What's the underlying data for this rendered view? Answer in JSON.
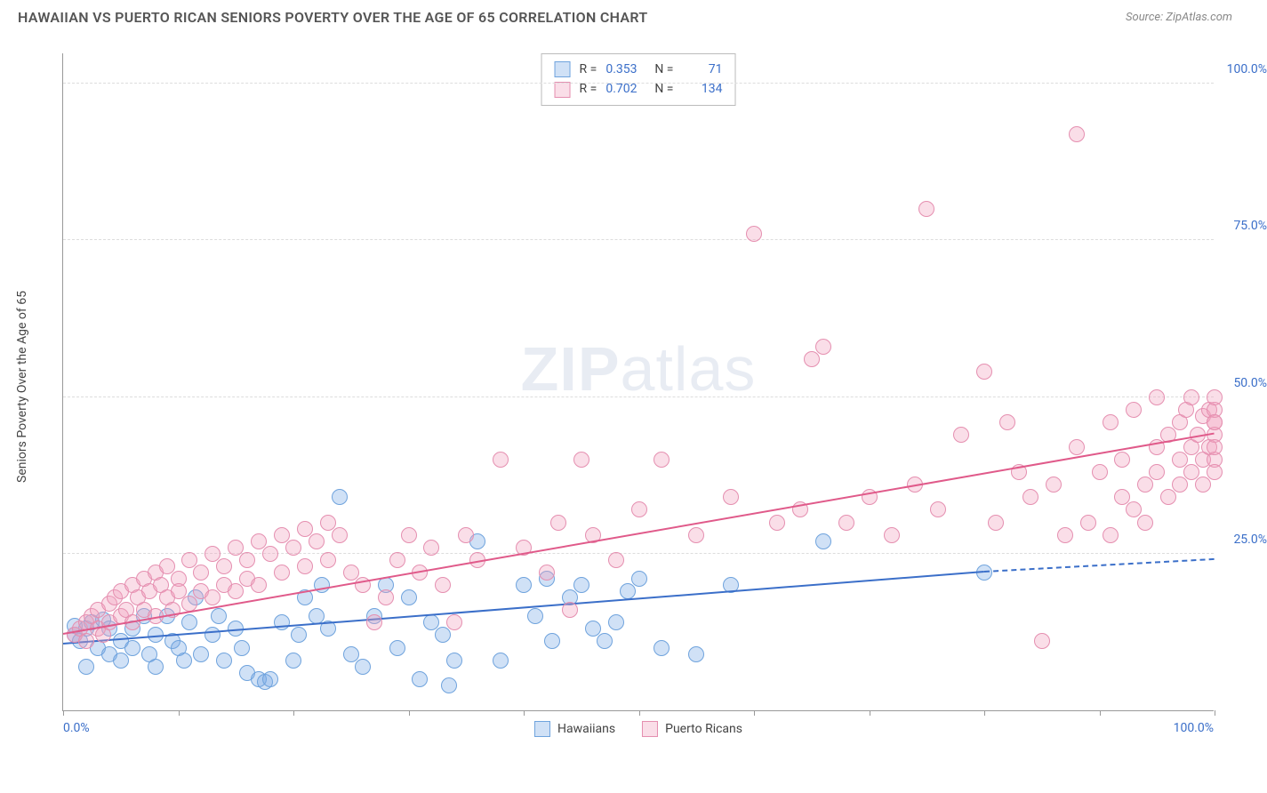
{
  "header": {
    "title": "HAWAIIAN VS PUERTO RICAN SENIORS POVERTY OVER THE AGE OF 65 CORRELATION CHART",
    "source": "Source: ZipAtlas.com"
  },
  "axes": {
    "y_title": "Seniors Poverty Over the Age of 65",
    "x_min_label": "0.0%",
    "x_max_label": "100.0%",
    "xlim": [
      0,
      100
    ],
    "ylim": [
      0,
      105
    ],
    "y_grid": [
      {
        "value": 25,
        "label": "25.0%"
      },
      {
        "value": 50,
        "label": "50.0%"
      },
      {
        "value": 75,
        "label": "75.0%"
      },
      {
        "value": 100,
        "label": "100.0%"
      }
    ],
    "x_ticks": [
      0,
      10,
      20,
      30,
      40,
      50,
      60,
      70,
      80,
      90,
      100
    ],
    "grid_color": "#dddddd",
    "axis_color": "#999999",
    "label_color": "#3b6fc9",
    "label_fontsize": 14
  },
  "watermark": {
    "bold": "ZIP",
    "rest": "atlas"
  },
  "series": [
    {
      "name": "Hawaiians",
      "fill": "rgba(120,170,230,0.35)",
      "stroke": "#6fa3dd",
      "marker_radius": 9,
      "trend": {
        "x1": 0,
        "y1": 10.5,
        "x2": 80,
        "y2": 22,
        "color": "#3b6fc9",
        "dashed_ext_x2": 100,
        "dashed_ext_y2": 24
      },
      "stats": {
        "R": "0.353",
        "N": "71"
      },
      "points": [
        [
          1,
          12
        ],
        [
          1,
          13.5
        ],
        [
          1.5,
          11
        ],
        [
          2,
          13
        ],
        [
          2,
          7
        ],
        [
          2.5,
          14
        ],
        [
          3,
          10
        ],
        [
          3.5,
          14.5
        ],
        [
          4,
          9
        ],
        [
          4,
          13
        ],
        [
          5,
          11
        ],
        [
          5,
          8
        ],
        [
          6,
          13
        ],
        [
          6,
          10
        ],
        [
          7,
          15
        ],
        [
          7.5,
          9
        ],
        [
          8,
          12
        ],
        [
          8,
          7
        ],
        [
          9,
          15
        ],
        [
          9.5,
          11
        ],
        [
          10,
          10
        ],
        [
          10.5,
          8
        ],
        [
          11,
          14
        ],
        [
          11.5,
          18
        ],
        [
          12,
          9
        ],
        [
          13,
          12
        ],
        [
          13.5,
          15
        ],
        [
          14,
          8
        ],
        [
          15,
          13
        ],
        [
          15.5,
          10
        ],
        [
          16,
          6
        ],
        [
          17,
          5
        ],
        [
          17.5,
          4.5
        ],
        [
          18,
          5
        ],
        [
          19,
          14
        ],
        [
          20,
          8
        ],
        [
          20.5,
          12
        ],
        [
          21,
          18
        ],
        [
          22,
          15
        ],
        [
          22.5,
          20
        ],
        [
          23,
          13
        ],
        [
          24,
          34
        ],
        [
          25,
          9
        ],
        [
          26,
          7
        ],
        [
          27,
          15
        ],
        [
          28,
          20
        ],
        [
          29,
          10
        ],
        [
          30,
          18
        ],
        [
          31,
          5
        ],
        [
          32,
          14
        ],
        [
          33,
          12
        ],
        [
          33.5,
          4
        ],
        [
          34,
          8
        ],
        [
          36,
          27
        ],
        [
          38,
          8
        ],
        [
          40,
          20
        ],
        [
          41,
          15
        ],
        [
          42,
          21
        ],
        [
          42.5,
          11
        ],
        [
          44,
          18
        ],
        [
          45,
          20
        ],
        [
          46,
          13
        ],
        [
          47,
          11
        ],
        [
          48,
          14
        ],
        [
          49,
          19
        ],
        [
          50,
          21
        ],
        [
          52,
          10
        ],
        [
          55,
          9
        ],
        [
          58,
          20
        ],
        [
          66,
          27
        ],
        [
          80,
          22
        ]
      ]
    },
    {
      "name": "Puerto Ricans",
      "fill": "rgba(240,160,190,0.35)",
      "stroke": "#e58fb0",
      "marker_radius": 9,
      "trend": {
        "x1": 0,
        "y1": 12,
        "x2": 100,
        "y2": 44,
        "color": "#e05a8a"
      },
      "stats": {
        "R": "0.702",
        "N": "134"
      },
      "points": [
        [
          1,
          12
        ],
        [
          1.5,
          13
        ],
        [
          2,
          14
        ],
        [
          2,
          11
        ],
        [
          2.5,
          15
        ],
        [
          3,
          13
        ],
        [
          3,
          16
        ],
        [
          3.5,
          12
        ],
        [
          4,
          17
        ],
        [
          4,
          14
        ],
        [
          4.5,
          18
        ],
        [
          5,
          15
        ],
        [
          5,
          19
        ],
        [
          5.5,
          16
        ],
        [
          6,
          20
        ],
        [
          6,
          14
        ],
        [
          6.5,
          18
        ],
        [
          7,
          21
        ],
        [
          7,
          16
        ],
        [
          7.5,
          19
        ],
        [
          8,
          22
        ],
        [
          8,
          15
        ],
        [
          8.5,
          20
        ],
        [
          9,
          18
        ],
        [
          9,
          23
        ],
        [
          9.5,
          16
        ],
        [
          10,
          21
        ],
        [
          10,
          19
        ],
        [
          11,
          24
        ],
        [
          11,
          17
        ],
        [
          12,
          22
        ],
        [
          12,
          19
        ],
        [
          13,
          25
        ],
        [
          13,
          18
        ],
        [
          14,
          23
        ],
        [
          14,
          20
        ],
        [
          15,
          26
        ],
        [
          15,
          19
        ],
        [
          16,
          24
        ],
        [
          16,
          21
        ],
        [
          17,
          27
        ],
        [
          17,
          20
        ],
        [
          18,
          25
        ],
        [
          19,
          28
        ],
        [
          19,
          22
        ],
        [
          20,
          26
        ],
        [
          21,
          29
        ],
        [
          21,
          23
        ],
        [
          22,
          27
        ],
        [
          23,
          30
        ],
        [
          23,
          24
        ],
        [
          24,
          28
        ],
        [
          25,
          22
        ],
        [
          26,
          20
        ],
        [
          27,
          14
        ],
        [
          28,
          18
        ],
        [
          29,
          24
        ],
        [
          30,
          28
        ],
        [
          31,
          22
        ],
        [
          32,
          26
        ],
        [
          33,
          20
        ],
        [
          34,
          14
        ],
        [
          35,
          28
        ],
        [
          36,
          24
        ],
        [
          38,
          40
        ],
        [
          40,
          26
        ],
        [
          42,
          22
        ],
        [
          43,
          30
        ],
        [
          44,
          16
        ],
        [
          45,
          40
        ],
        [
          46,
          28
        ],
        [
          48,
          24
        ],
        [
          50,
          32
        ],
        [
          52,
          40
        ],
        [
          55,
          28
        ],
        [
          58,
          34
        ],
        [
          60,
          76
        ],
        [
          62,
          30
        ],
        [
          64,
          32
        ],
        [
          65,
          56
        ],
        [
          66,
          58
        ],
        [
          68,
          30
        ],
        [
          70,
          34
        ],
        [
          72,
          28
        ],
        [
          74,
          36
        ],
        [
          75,
          80
        ],
        [
          76,
          32
        ],
        [
          78,
          44
        ],
        [
          80,
          54
        ],
        [
          81,
          30
        ],
        [
          82,
          46
        ],
        [
          83,
          38
        ],
        [
          84,
          34
        ],
        [
          85,
          11
        ],
        [
          86,
          36
        ],
        [
          87,
          28
        ],
        [
          88,
          42
        ],
        [
          88,
          92
        ],
        [
          89,
          30
        ],
        [
          90,
          38
        ],
        [
          91,
          46
        ],
        [
          91,
          28
        ],
        [
          92,
          40
        ],
        [
          92,
          34
        ],
        [
          93,
          32
        ],
        [
          93,
          48
        ],
        [
          94,
          36
        ],
        [
          94,
          30
        ],
        [
          95,
          42
        ],
        [
          95,
          38
        ],
        [
          95,
          50
        ],
        [
          96,
          34
        ],
        [
          96,
          44
        ],
        [
          97,
          40
        ],
        [
          97,
          46
        ],
        [
          97,
          36
        ],
        [
          97.5,
          48
        ],
        [
          98,
          42
        ],
        [
          98,
          38
        ],
        [
          98,
          50
        ],
        [
          98.5,
          44
        ],
        [
          99,
          40
        ],
        [
          99,
          47
        ],
        [
          99,
          36
        ],
        [
          99.5,
          48
        ],
        [
          99.5,
          42
        ],
        [
          100,
          46
        ],
        [
          100,
          44
        ],
        [
          100,
          40
        ],
        [
          100,
          48
        ],
        [
          100,
          38
        ],
        [
          100,
          50
        ],
        [
          100,
          42
        ],
        [
          100,
          46
        ]
      ]
    }
  ],
  "legend": {
    "stats_labels": {
      "R": "R =",
      "N": "N ="
    },
    "bottom": [
      "Hawaiians",
      "Puerto Ricans"
    ]
  },
  "colors": {
    "background": "#ffffff",
    "title_color": "#555555",
    "source_color": "#888888"
  }
}
